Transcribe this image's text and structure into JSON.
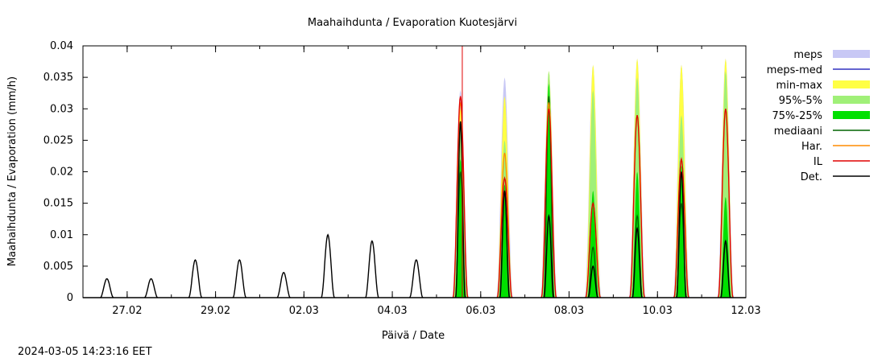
{
  "chart_data": {
    "type": "area",
    "title": "Maahaihdunta / Evaporation  Kuotesjärvi",
    "xlabel": "Päivä / Date",
    "ylabel": "Maahaihdunta / Evaporation (mm/h)",
    "xlim": [
      "2024-02-26",
      "2024-03-12"
    ],
    "ylim": [
      0,
      0.04
    ],
    "yticks": [
      "0",
      "0.005",
      "0.01",
      "0.015",
      "0.02",
      "0.025",
      "0.03",
      "0.035",
      "0.04"
    ],
    "xticks": [
      "27.02",
      "29.02",
      "02.03",
      "04.03",
      "06.03",
      "08.03",
      "10.03",
      "12.03"
    ],
    "grid": false,
    "legend_position": "right",
    "forecast_start": "2024-03-05 14:00",
    "colors": {
      "meps": "#c8c8f5",
      "meps_med": "#3030c0",
      "min_max": "#ffff44",
      "p95_5": "#a0f078",
      "p75_25": "#00e000",
      "mediaani": "#006400",
      "har": "#ff8c00",
      "il": "#e00000",
      "det": "#000000",
      "forecast_line": "#e00000"
    },
    "legend": [
      {
        "key": "meps",
        "label": "meps",
        "style": "band"
      },
      {
        "key": "meps_med",
        "label": "meps-med",
        "style": "line"
      },
      {
        "key": "min_max",
        "label": "min-max",
        "style": "band"
      },
      {
        "key": "p95_5",
        "label": "95%-5%",
        "style": "band"
      },
      {
        "key": "p75_25",
        "label": "75%-25%",
        "style": "band"
      },
      {
        "key": "mediaani",
        "label": "mediaani",
        "style": "line"
      },
      {
        "key": "har",
        "label": "Har.",
        "style": "line"
      },
      {
        "key": "il",
        "label": "IL",
        "style": "line"
      },
      {
        "key": "det",
        "label": "Det.",
        "style": "line"
      }
    ],
    "observed_det_peaks": [
      {
        "date": "2024-02-26",
        "value": 0.003
      },
      {
        "date": "2024-02-27",
        "value": 0.003
      },
      {
        "date": "2024-02-28",
        "value": 0.006
      },
      {
        "date": "2024-02-29",
        "value": 0.006
      },
      {
        "date": "2024-03-01",
        "value": 0.004
      },
      {
        "date": "2024-03-02",
        "value": 0.01
      },
      {
        "date": "2024-03-03",
        "value": 0.009
      },
      {
        "date": "2024-03-04",
        "value": 0.006
      }
    ],
    "forecast_daily_peaks": [
      {
        "date": "2024-03-05",
        "meps": 0.033,
        "min_max": 0.03,
        "p95_5": 0.027,
        "p75_25": 0.022,
        "mediaani": 0.02,
        "har": 0.031,
        "il": 0.032,
        "det": 0.028
      },
      {
        "date": "2024-03-06",
        "meps": 0.035,
        "min_max": 0.032,
        "p95_5": 0.025,
        "p75_25": 0.018,
        "mediaani": 0.017,
        "har": 0.023,
        "il": 0.019,
        "det": 0.017
      },
      {
        "date": "2024-03-07",
        "meps": 0.036,
        "min_max": 0.036,
        "p95_5": 0.036,
        "p75_25": 0.034,
        "mediaani": 0.032,
        "har": 0.031,
        "il": 0.03,
        "det": 0.013
      },
      {
        "date": "2024-03-08",
        "meps": 0.037,
        "min_max": 0.037,
        "p95_5": 0.033,
        "p75_25": 0.017,
        "mediaani": 0.008,
        "har": 0.015,
        "il": 0.015,
        "det": 0.005
      },
      {
        "date": "2024-03-09",
        "meps": 0.038,
        "min_max": 0.038,
        "p95_5": 0.035,
        "p75_25": 0.02,
        "mediaani": 0.013,
        "har": 0.029,
        "il": 0.029,
        "det": 0.011
      },
      {
        "date": "2024-03-10",
        "meps": 0.037,
        "min_max": 0.037,
        "p95_5": 0.029,
        "p75_25": 0.021,
        "mediaani": 0.015,
        "har": 0.022,
        "il": 0.022,
        "det": 0.02
      },
      {
        "date": "2024-03-11",
        "meps": 0.038,
        "min_max": 0.038,
        "p95_5": 0.036,
        "p75_25": 0.016,
        "mediaani": 0.009,
        "har": 0.03,
        "il": 0.03,
        "det": 0.009
      }
    ]
  },
  "footer": {
    "timestamp": "2024-03-05 14:23:16 EET"
  }
}
